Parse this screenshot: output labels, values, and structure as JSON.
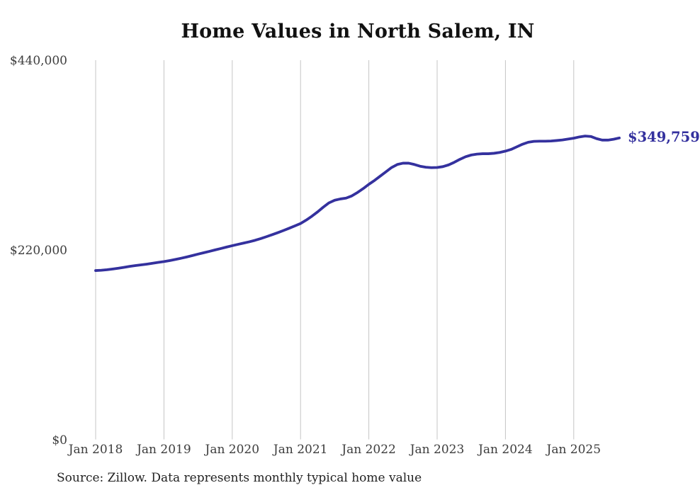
{
  "chart": {
    "title": "Home Values in North Salem, IN",
    "end_label": "$349,759",
    "source": "Source: Zillow. Data represents monthly typical home value",
    "line_color": "#34319e",
    "grid_color": "#c5c5c5"
  },
  "chart_data": {
    "type": "line",
    "title": "Home Values in North Salem, IN",
    "xlabel": "",
    "ylabel": "",
    "ylim": [
      0,
      440000
    ],
    "y_tick_values": [
      0,
      220000,
      440000
    ],
    "y_tick_labels": [
      "$0",
      "$220,000",
      "$440,000"
    ],
    "x_tick_labels": [
      "Jan 2018",
      "Jan 2019",
      "Jan 2020",
      "Jan 2021",
      "Jan 2022",
      "Jan 2023",
      "Jan 2024",
      "Jan 2025"
    ],
    "x_tick_interval_months": 12,
    "grid": "vertical-only",
    "legend": "none",
    "annotation": {
      "text": "$349,759",
      "position": "end-of-line"
    },
    "last_value": 349759,
    "series": [
      {
        "name": "Monthly typical home value",
        "start": "2018-01",
        "frequency": "monthly",
        "values": [
          195900,
          196300,
          196900,
          197700,
          198600,
          199700,
          200800,
          201700,
          202500,
          203400,
          204400,
          205400,
          206300,
          207500,
          208800,
          210200,
          211700,
          213300,
          215000,
          216600,
          218200,
          219900,
          221500,
          223200,
          224800,
          226300,
          227800,
          229300,
          231000,
          233000,
          235200,
          237500,
          239900,
          242400,
          245000,
          247700,
          250500,
          254500,
          259000,
          264000,
          269500,
          274500,
          277500,
          279000,
          280000,
          282500,
          286500,
          291000,
          296000,
          300500,
          305500,
          310500,
          315500,
          319000,
          320500,
          320500,
          319000,
          317000,
          315800,
          315300,
          315500,
          316500,
          318500,
          321500,
          325000,
          328000,
          330000,
          331000,
          331500,
          331500,
          332000,
          333000,
          334500,
          336500,
          339500,
          342500,
          344800,
          345800,
          346000,
          346000,
          346200,
          346800,
          347500,
          348500,
          349500,
          351000,
          352000,
          351500,
          349000,
          347300,
          347300,
          348300,
          349759
        ]
      }
    ]
  }
}
